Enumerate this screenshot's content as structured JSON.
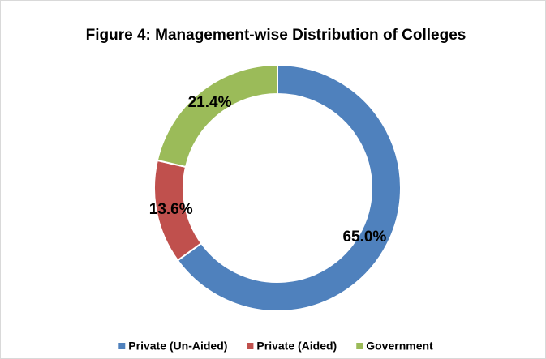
{
  "chart_data": {
    "type": "donut",
    "title": "Figure 4: Management-wise Distribution of Colleges",
    "categories": [
      "Private (Un-Aided)",
      "Private (Aided)",
      "Government"
    ],
    "values": [
      65.0,
      13.6,
      21.4
    ],
    "value_labels": [
      "65.0%",
      "13.6%",
      "21.4%"
    ],
    "colors": [
      "#4f81bd",
      "#c0504d",
      "#9bbb59"
    ],
    "legend": "bottom"
  }
}
